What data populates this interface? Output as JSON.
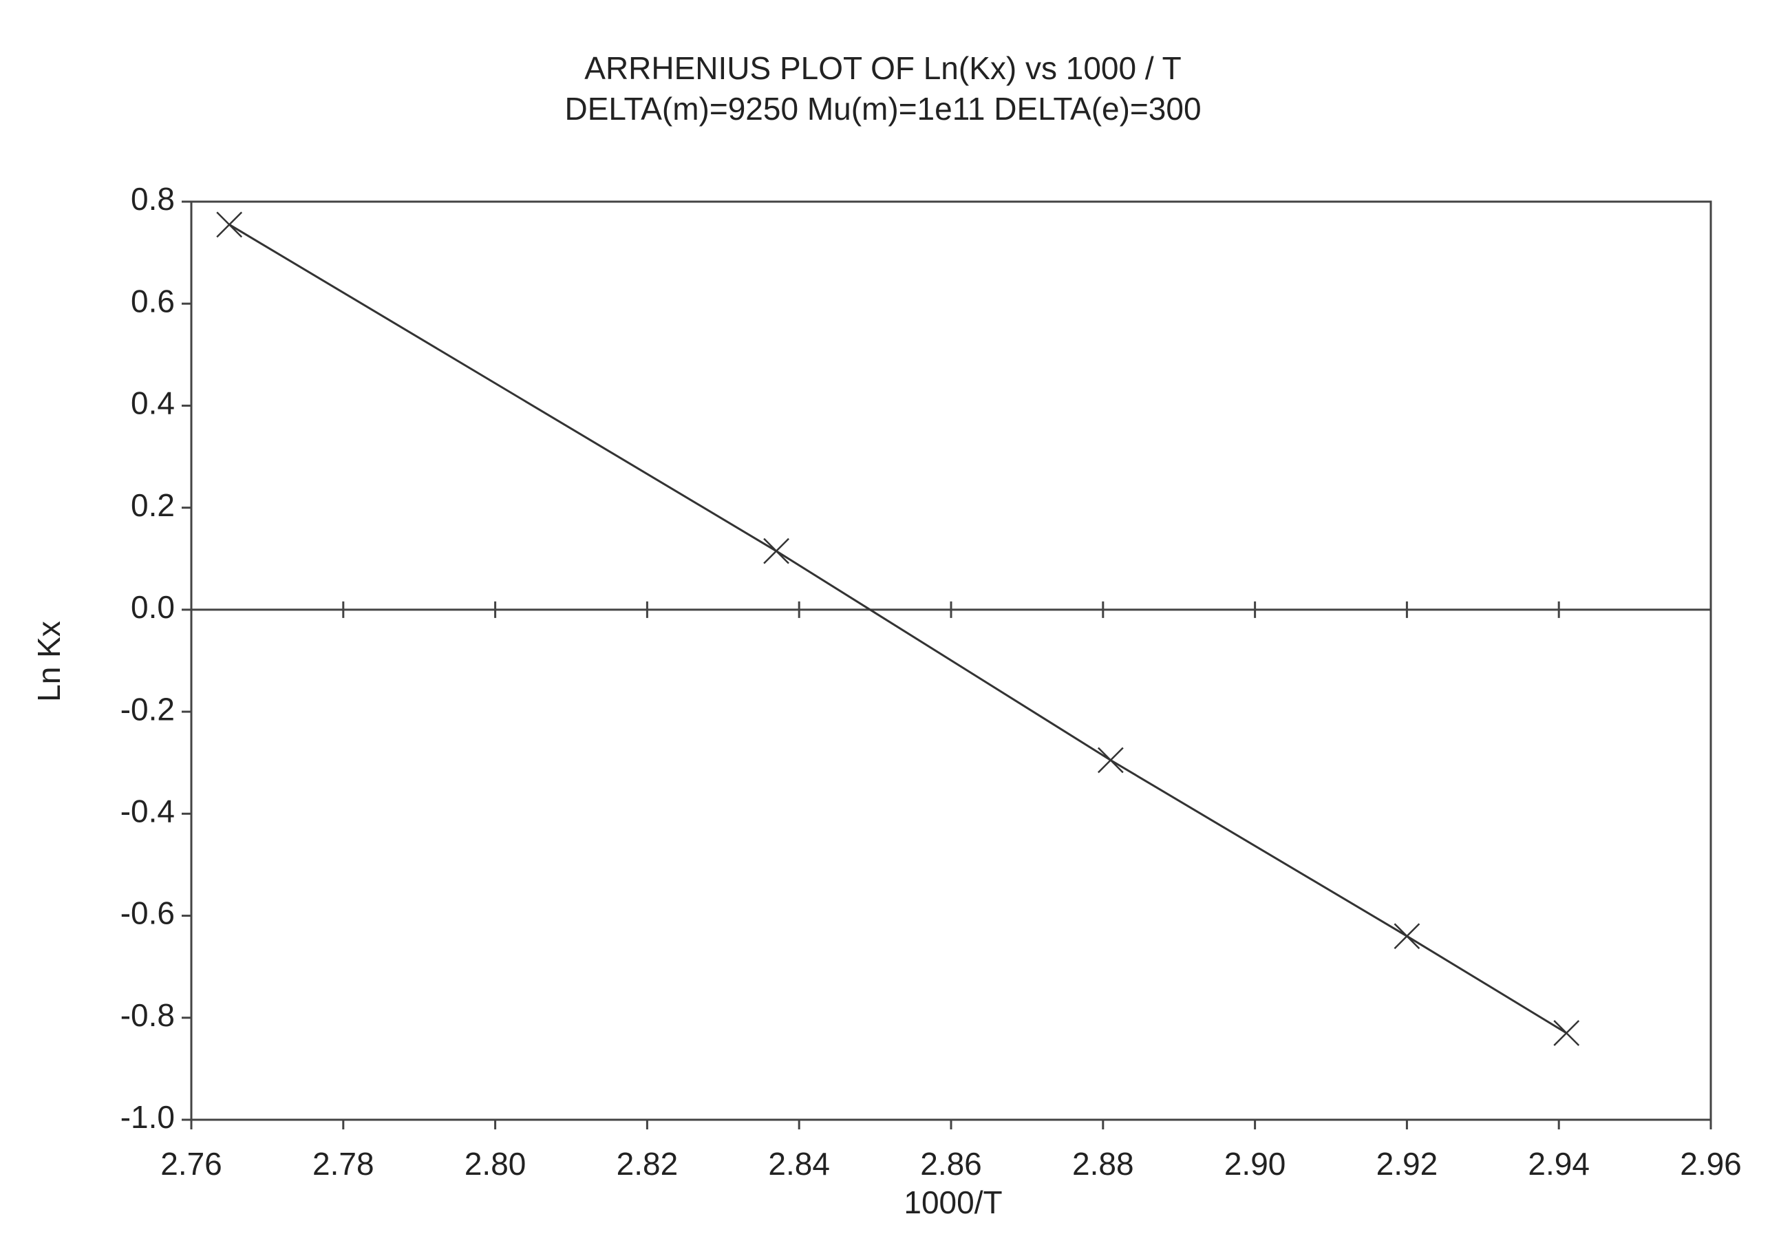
{
  "chart_data": {
    "type": "line",
    "title": "ARRHENIUS PLOT OF Ln(Kx) vs 1000 / T",
    "subtitle": "DELTA(m)=9250 Mu(m)=1e11 DELTA(e)=300",
    "xlabel": "1000/T",
    "ylabel": "Ln Kx",
    "series": [
      {
        "color": "#333333",
        "marker": "x",
        "x": [
          2.765,
          2.837,
          2.881,
          2.92,
          2.941
        ],
        "values": [
          0.755,
          0.115,
          -0.295,
          -0.64,
          -0.83
        ]
      }
    ],
    "xlim": [
      2.76,
      2.96
    ],
    "xticks": [
      2.76,
      2.78,
      {
        "value": 2.8,
        "label": "2.80"
      },
      2.82,
      2.84,
      2.86,
      2.88,
      {
        "value": 2.9,
        "label": "2.90"
      },
      2.92,
      2.94,
      2.96
    ],
    "ylim": [
      -1.0,
      0.8
    ],
    "yticks": [
      {
        "value": -1.0,
        "label": "-1.0"
      },
      -0.8,
      -0.6,
      -0.4,
      -0.2,
      {
        "value": 0,
        "label": "0.0"
      },
      0.2,
      0.4,
      0.6,
      0.8
    ],
    "zero_line": true
  }
}
